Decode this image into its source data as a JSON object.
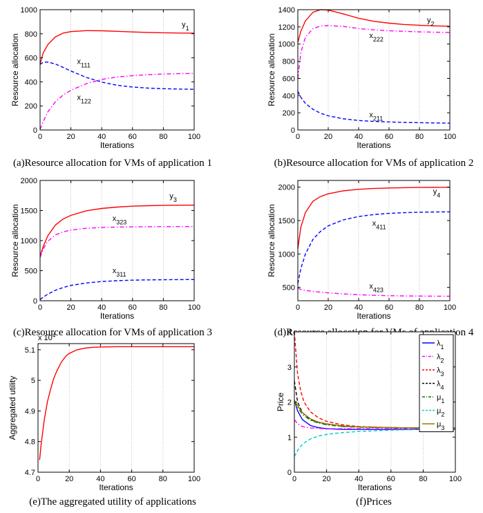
{
  "chart_data": [
    {
      "type": "line",
      "caption": "(a)Resource allocation for VMs of application 1",
      "xlabel": "Iterations",
      "ylabel": "Resource allocation",
      "xlim": [
        0,
        100
      ],
      "ylim": [
        0,
        1000
      ],
      "xticks": [
        "0",
        "20",
        "40",
        "60",
        "80",
        "100"
      ],
      "yticks": [
        "0",
        "200",
        "400",
        "600",
        "800",
        "1000"
      ],
      "series": [
        {
          "name": "y1",
          "color": "#ff0000",
          "dash": "solid",
          "x": [
            0,
            2,
            5,
            10,
            15,
            20,
            30,
            40,
            50,
            60,
            70,
            80,
            90,
            100
          ],
          "y": [
            550,
            640,
            710,
            775,
            805,
            818,
            826,
            825,
            820,
            815,
            811,
            808,
            806,
            805
          ]
        },
        {
          "name": "x111",
          "color": "#0000ff",
          "dash": "dashed",
          "x": [
            0,
            2,
            5,
            10,
            15,
            20,
            30,
            40,
            50,
            60,
            70,
            80,
            90,
            100
          ],
          "y": [
            545,
            563,
            565,
            548,
            520,
            490,
            437,
            398,
            372,
            357,
            348,
            343,
            340,
            338
          ]
        },
        {
          "name": "x122",
          "color": "#ff00ff",
          "dash": "dashdot",
          "x": [
            0,
            2,
            5,
            10,
            15,
            20,
            30,
            40,
            50,
            60,
            70,
            80,
            90,
            100
          ],
          "y": [
            5,
            70,
            150,
            235,
            290,
            330,
            385,
            420,
            440,
            452,
            460,
            465,
            468,
            470
          ]
        }
      ],
      "annotations": [
        {
          "text": "y1",
          "x": 92,
          "y": 855
        },
        {
          "text": "x111",
          "x": 24,
          "y": 550
        },
        {
          "text": "x122",
          "x": 24,
          "y": 250
        }
      ]
    },
    {
      "type": "line",
      "caption": "(b)Resource allocation for VMs of application 2",
      "xlabel": "Iterations",
      "ylabel": "Resource allocation",
      "xlim": [
        0,
        100
      ],
      "ylim": [
        0,
        1400
      ],
      "xticks": [
        "0",
        "20",
        "40",
        "60",
        "80",
        "100"
      ],
      "yticks": [
        "0",
        "200",
        "400",
        "600",
        "800",
        "1000",
        "1200",
        "1400"
      ],
      "series": [
        {
          "name": "y2",
          "color": "#ff0000",
          "dash": "solid",
          "x": [
            0,
            2,
            5,
            10,
            15,
            20,
            30,
            40,
            50,
            60,
            70,
            80,
            90,
            100
          ],
          "y": [
            1020,
            1150,
            1270,
            1370,
            1400,
            1395,
            1350,
            1300,
            1265,
            1243,
            1228,
            1218,
            1212,
            1208
          ]
        },
        {
          "name": "x222",
          "color": "#ff00ff",
          "dash": "dashdot",
          "x": [
            0,
            2,
            5,
            10,
            15,
            20,
            30,
            40,
            50,
            60,
            70,
            80,
            90,
            100
          ],
          "y": [
            600,
            900,
            1080,
            1180,
            1210,
            1215,
            1205,
            1180,
            1165,
            1155,
            1148,
            1142,
            1138,
            1135
          ]
        },
        {
          "name": "x211",
          "color": "#0000ff",
          "dash": "dashed",
          "x": [
            0,
            2,
            5,
            10,
            15,
            20,
            30,
            40,
            50,
            60,
            70,
            80,
            90,
            100
          ],
          "y": [
            450,
            380,
            310,
            240,
            195,
            165,
            130,
            110,
            100,
            93,
            88,
            85,
            82,
            80
          ]
        }
      ],
      "annotations": [
        {
          "text": "y2",
          "x": 85,
          "y": 1250
        },
        {
          "text": "x222",
          "x": 47,
          "y": 1070
        },
        {
          "text": "x211",
          "x": 47,
          "y": 150
        }
      ]
    },
    {
      "type": "line",
      "caption": "(c)Resource allocation for VMs of application 3",
      "xlabel": "Iterations",
      "ylabel": "Resource allocation",
      "xlim": [
        0,
        100
      ],
      "ylim": [
        0,
        2000
      ],
      "xticks": [
        "0",
        "20",
        "40",
        "60",
        "80",
        "100"
      ],
      "yticks": [
        "0",
        "500",
        "1000",
        "1500",
        "2000"
      ],
      "series": [
        {
          "name": "y3",
          "color": "#ff0000",
          "dash": "solid",
          "x": [
            0,
            2,
            5,
            10,
            15,
            20,
            30,
            40,
            50,
            60,
            70,
            80,
            90,
            100
          ],
          "y": [
            740,
            900,
            1080,
            1260,
            1360,
            1420,
            1495,
            1535,
            1558,
            1572,
            1580,
            1585,
            1588,
            1590
          ]
        },
        {
          "name": "x323",
          "color": "#ff00ff",
          "dash": "dashdot",
          "x": [
            0,
            2,
            5,
            10,
            15,
            20,
            30,
            40,
            50,
            60,
            70,
            80,
            90,
            100
          ],
          "y": [
            720,
            860,
            990,
            1095,
            1145,
            1175,
            1205,
            1218,
            1225,
            1229,
            1231,
            1232,
            1233,
            1233
          ]
        },
        {
          "name": "x311",
          "color": "#0000ff",
          "dash": "dashed",
          "x": [
            0,
            2,
            5,
            10,
            15,
            20,
            30,
            40,
            50,
            60,
            70,
            80,
            90,
            100
          ],
          "y": [
            20,
            60,
            110,
            175,
            220,
            255,
            295,
            320,
            333,
            342,
            347,
            350,
            352,
            353
          ]
        }
      ],
      "annotations": [
        {
          "text": "y3",
          "x": 84,
          "y": 1700
        },
        {
          "text": "x323",
          "x": 47,
          "y": 1330
        },
        {
          "text": "x311",
          "x": 47,
          "y": 460
        }
      ]
    },
    {
      "type": "line",
      "caption": "(d)Resource allocation for VMs of application 4",
      "xlabel": "Iterations",
      "ylabel": "Resource allocation",
      "xlim": [
        0,
        100
      ],
      "ylim": [
        300,
        2100
      ],
      "xticks": [
        "0",
        "20",
        "40",
        "60",
        "80",
        "100"
      ],
      "yticks": [
        "500",
        "1000",
        "1500",
        "2000"
      ],
      "series": [
        {
          "name": "y4",
          "color": "#ff0000",
          "dash": "solid",
          "x": [
            0,
            2,
            5,
            10,
            15,
            20,
            30,
            40,
            50,
            60,
            70,
            80,
            90,
            100
          ],
          "y": [
            1080,
            1400,
            1620,
            1790,
            1860,
            1900,
            1945,
            1968,
            1980,
            1987,
            1992,
            1995,
            1997,
            1998
          ]
        },
        {
          "name": "x411",
          "color": "#0000ff",
          "dash": "dashed",
          "x": [
            0,
            2,
            5,
            10,
            15,
            20,
            30,
            40,
            50,
            60,
            70,
            80,
            90,
            100
          ],
          "y": [
            560,
            780,
            1000,
            1220,
            1340,
            1420,
            1510,
            1560,
            1590,
            1608,
            1618,
            1624,
            1628,
            1630
          ]
        },
        {
          "name": "x423",
          "color": "#ff00ff",
          "dash": "dashdot",
          "x": [
            0,
            2,
            5,
            10,
            15,
            20,
            30,
            40,
            50,
            60,
            70,
            80,
            90,
            100
          ],
          "y": [
            490,
            470,
            455,
            440,
            428,
            418,
            402,
            390,
            382,
            376,
            372,
            370,
            368,
            367
          ]
        }
      ],
      "annotations": [
        {
          "text": "y4",
          "x": 89,
          "y": 1900
        },
        {
          "text": "x411",
          "x": 49,
          "y": 1420
        },
        {
          "text": "x423",
          "x": 47,
          "y": 480
        }
      ]
    },
    {
      "type": "line",
      "caption": "(e)The aggregated utility of applications",
      "xlabel": "Iterations",
      "ylabel": "Aggregated utility",
      "exponent": "x 10^4",
      "xlim": [
        0,
        100
      ],
      "ylim": [
        4.7,
        5.12
      ],
      "xticks": [
        "0",
        "20",
        "40",
        "60",
        "80",
        "100"
      ],
      "yticks": [
        "4.7",
        "4.8",
        "4.9",
        "5",
        "5.1"
      ],
      "series": [
        {
          "name": "utility",
          "color": "#ff0000",
          "dash": "solid",
          "x": [
            1,
            2,
            4,
            6,
            8,
            10,
            12,
            15,
            18,
            20,
            25,
            30,
            35,
            40,
            50,
            60,
            70,
            80,
            90,
            100
          ],
          "y": [
            4.74,
            4.79,
            4.87,
            4.93,
            4.97,
            5.005,
            5.03,
            5.06,
            5.08,
            5.088,
            5.1,
            5.105,
            5.108,
            5.109,
            5.11,
            5.11,
            5.11,
            5.11,
            5.11,
            5.11
          ]
        }
      ]
    },
    {
      "type": "line",
      "caption": "(f)Prices",
      "xlabel": "Iterations",
      "ylabel": "Price",
      "xlim": [
        0,
        100
      ],
      "ylim": [
        0,
        4
      ],
      "xticks": [
        "0",
        "20",
        "40",
        "60",
        "80",
        "100"
      ],
      "yticks": [
        "0",
        "1",
        "2",
        "3",
        "4"
      ],
      "series": [
        {
          "name": "λ1",
          "color": "#0000ff",
          "dash": "solid",
          "x": [
            0,
            2,
            5,
            10,
            15,
            20,
            30,
            40,
            60,
            80,
            100
          ],
          "y": [
            2.05,
            1.75,
            1.5,
            1.33,
            1.27,
            1.24,
            1.22,
            1.22,
            1.22,
            1.22,
            1.22
          ]
        },
        {
          "name": "λ2",
          "color": "#ff00ff",
          "dash": "dashdot",
          "x": [
            0,
            2,
            5,
            10,
            15,
            20,
            30,
            40,
            60,
            80,
            100
          ],
          "y": [
            1.5,
            1.38,
            1.3,
            1.26,
            1.25,
            1.24,
            1.24,
            1.24,
            1.24,
            1.24,
            1.24
          ]
        },
        {
          "name": "λ3",
          "color": "#ff0000",
          "dash": "dashed",
          "x": [
            0,
            1,
            2,
            4,
            6,
            10,
            15,
            20,
            30,
            40,
            60,
            80,
            100
          ],
          "y": [
            4.0,
            3.4,
            2.8,
            2.3,
            2.0,
            1.72,
            1.55,
            1.45,
            1.35,
            1.3,
            1.27,
            1.26,
            1.26
          ]
        },
        {
          "name": "λ4",
          "color": "#000000",
          "dash": "dashed",
          "x": [
            0,
            2,
            5,
            10,
            15,
            20,
            30,
            40,
            60,
            80,
            100
          ],
          "y": [
            2.6,
            2.0,
            1.7,
            1.5,
            1.42,
            1.37,
            1.31,
            1.29,
            1.27,
            1.26,
            1.26
          ]
        },
        {
          "name": "μ1",
          "color": "#008000",
          "dash": "dashdot",
          "x": [
            0,
            2,
            5,
            10,
            15,
            20,
            30,
            40,
            60,
            80,
            100
          ],
          "y": [
            2.0,
            1.85,
            1.65,
            1.48,
            1.4,
            1.35,
            1.3,
            1.28,
            1.27,
            1.26,
            1.26
          ]
        },
        {
          "name": "μ2",
          "color": "#00cccc",
          "dash": "dashed",
          "x": [
            0,
            2,
            5,
            10,
            15,
            20,
            30,
            40,
            60,
            80,
            100
          ],
          "y": [
            0.45,
            0.62,
            0.8,
            0.95,
            1.03,
            1.08,
            1.13,
            1.16,
            1.2,
            1.22,
            1.23
          ]
        },
        {
          "name": "μ3",
          "color": "#a07000",
          "dash": "solid",
          "x": [
            0,
            2,
            5,
            10,
            15,
            20,
            30,
            40,
            60,
            80,
            100
          ],
          "y": [
            2.05,
            1.9,
            1.7,
            1.52,
            1.43,
            1.38,
            1.32,
            1.29,
            1.27,
            1.26,
            1.26
          ]
        }
      ],
      "legend": [
        "λ1",
        "λ2",
        "λ3",
        "λ4",
        "μ1",
        "μ2",
        "μ3"
      ]
    }
  ]
}
